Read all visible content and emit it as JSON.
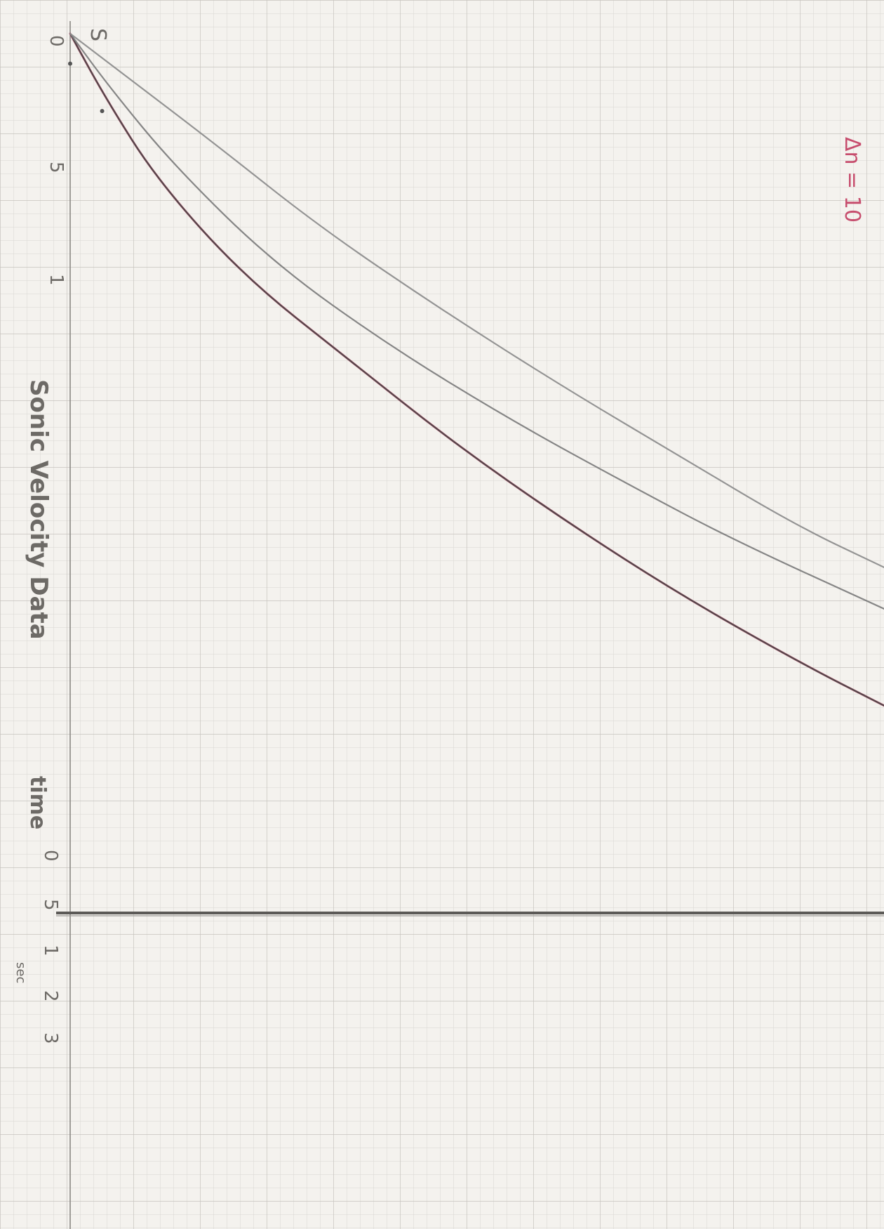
{
  "chart_data": {
    "type": "line",
    "title": "Sonic Velocity Data",
    "xlabel": "time",
    "ylabel": "",
    "y_unit_label": "sec",
    "orientation": "rotated-90-clockwise",
    "axis_ticks_labeled": [
      "0",
      "5",
      "1"
    ],
    "lower_tick_labels": [
      "0",
      "5",
      "1",
      "2",
      "3"
    ],
    "top_annotation": "S",
    "margin_note": "Δn = 10",
    "grid": true,
    "series": [
      {
        "name": "",
        "color": "#c74e6e",
        "points": [
          [
            0.0,
            0.02
          ],
          [
            0.6,
            0.25
          ],
          [
            1.5,
            0.55
          ],
          [
            3.0,
            0.9
          ],
          [
            4.8,
            1.2
          ],
          [
            6.6,
            1.5
          ],
          [
            8.5,
            1.78
          ],
          [
            10.5,
            2.05
          ],
          [
            12.6,
            2.3
          ],
          [
            14.0,
            2.45
          ]
        ]
      },
      {
        "name": "",
        "color": "#444444",
        "points": [
          [
            0.0,
            0.02
          ],
          [
            0.6,
            0.25
          ],
          [
            1.5,
            0.55
          ],
          [
            3.0,
            0.9
          ],
          [
            4.8,
            1.2
          ],
          [
            6.6,
            1.5
          ],
          [
            8.5,
            1.78
          ],
          [
            10.5,
            2.05
          ],
          [
            12.6,
            2.3
          ],
          [
            14.0,
            2.45
          ]
        ]
      },
      {
        "name": "",
        "color": "#7a7a7a",
        "points": [
          [
            0.0,
            0.02
          ],
          [
            0.7,
            0.22
          ],
          [
            1.8,
            0.5
          ],
          [
            3.5,
            0.85
          ],
          [
            5.5,
            1.15
          ],
          [
            7.6,
            1.42
          ],
          [
            9.6,
            1.65
          ],
          [
            11.4,
            1.85
          ],
          [
            14.0,
            2.1
          ]
        ]
      },
      {
        "name": "",
        "color": "#8a8a8a",
        "points": [
          [
            0.0,
            0.02
          ],
          [
            1.0,
            0.18
          ],
          [
            2.5,
            0.42
          ],
          [
            4.3,
            0.72
          ],
          [
            6.4,
            1.02
          ],
          [
            8.5,
            1.3
          ],
          [
            10.5,
            1.55
          ],
          [
            12.5,
            1.8
          ],
          [
            14.0,
            1.95
          ]
        ]
      }
    ],
    "vertical_rule_y": 3.2,
    "marked_points": [
      [
        1.5,
        0.0
      ],
      [
        3.5,
        0.55
      ]
    ]
  }
}
